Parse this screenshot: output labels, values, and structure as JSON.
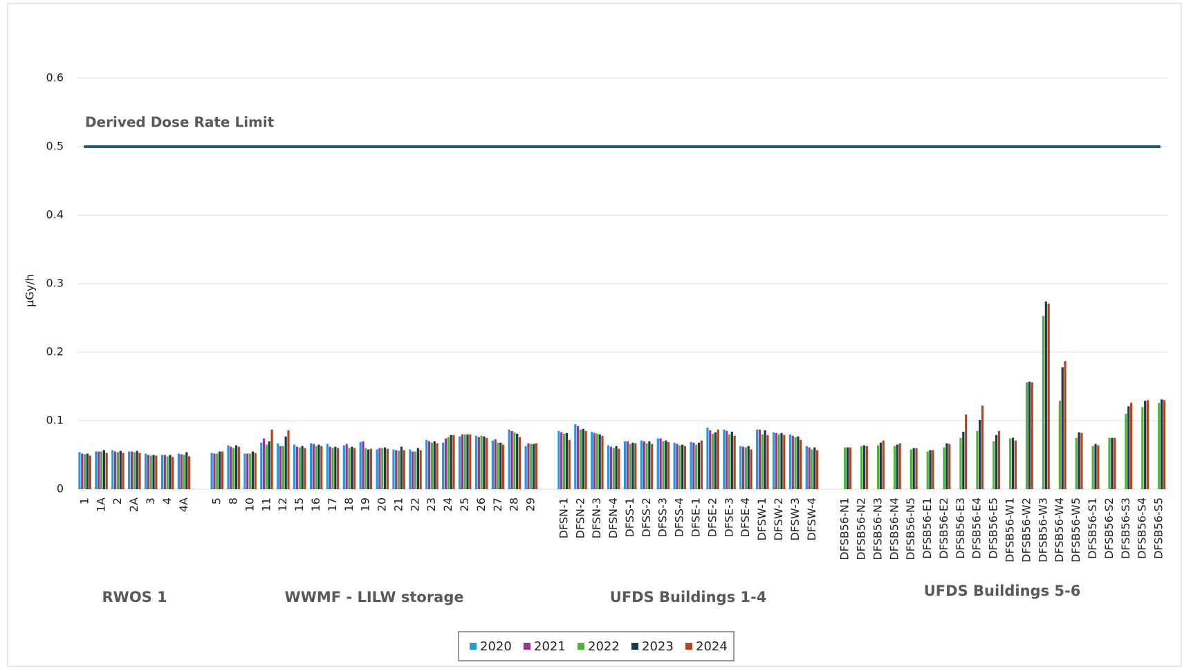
{
  "chart_data": {
    "type": "bar",
    "y_label": "µGy/h",
    "ylim": [
      0,
      0.6
    ],
    "yticks": [
      0,
      0.1,
      0.2,
      0.3,
      0.4,
      0.5,
      0.6
    ],
    "grid": true,
    "legend": "bottom",
    "reference_line": {
      "label": "Derived Dose Rate Limit",
      "value": 0.5,
      "color": "#1b5a7e"
    },
    "group_labels": [
      "RWOS 1",
      "WWMF - LILW storage",
      "UFDS Buildings 1-4",
      "UFDS Buildings 5-6"
    ],
    "categories": [
      "1",
      "1A",
      "2",
      "2A",
      "3",
      "4",
      "4A",
      null,
      "5",
      "8",
      "10",
      "11",
      "12",
      "15",
      "16",
      "17",
      "18",
      "19",
      "20",
      "21",
      "22",
      "23",
      "24",
      "25",
      "26",
      "27",
      "28",
      "29",
      null,
      "DFSN-1",
      "DFSN-2",
      "DFSN-3",
      "DFSN-4",
      "DFSS-1",
      "DFSS-2",
      "DFSS-3",
      "DFSS-4",
      "DFSE-1",
      "DFSE-2",
      "DFSE-3",
      "DFSE-4",
      "DFSW-1",
      "DFSW-2",
      "DFSW-3",
      "DFSW-4",
      null,
      "DFSB56-N1",
      "DFSB56-N2",
      "DFSB56-N3",
      "DFSB56-N4",
      "DFSB56-N5",
      "DFSB56-E1",
      "DFSB56-E2",
      "DFSB56-E3",
      "DFSB56-E4",
      "DFSB56-E5",
      "DFSB56-W1",
      "DFSB56-W2",
      "DFSB56-W3",
      "DFSB56-W4",
      "DFSB56-W5",
      "DFSB56-S1",
      "DFSB56-S2",
      "DFSB56-S3",
      "DFSB56-S4",
      "DFSB56-S5"
    ],
    "series": [
      {
        "name": "2020",
        "color": "#1f9bd7",
        "values": [
          0.054,
          0.055,
          0.057,
          0.055,
          0.052,
          0.05,
          0.052,
          null,
          0.053,
          0.064,
          0.052,
          0.068,
          0.067,
          0.065,
          0.067,
          0.066,
          0.064,
          0.069,
          0.058,
          0.058,
          0.058,
          0.072,
          0.068,
          0.077,
          0.078,
          0.071,
          0.087,
          0.063,
          null,
          0.085,
          0.095,
          0.084,
          0.064,
          0.07,
          0.071,
          0.074,
          0.068,
          0.069,
          0.09,
          0.087,
          0.063,
          0.087,
          0.083,
          0.08,
          0.063,
          null,
          null,
          null,
          null,
          null,
          null,
          null,
          null,
          null,
          null,
          null,
          null,
          null,
          null,
          null,
          null,
          null,
          null,
          null,
          null,
          null
        ]
      },
      {
        "name": "2021",
        "color": "#a0309a",
        "values": [
          0.052,
          0.055,
          0.055,
          0.055,
          0.05,
          0.05,
          0.051,
          null,
          0.052,
          0.062,
          0.052,
          0.074,
          0.063,
          0.062,
          0.066,
          0.062,
          0.066,
          0.07,
          0.06,
          0.057,
          0.055,
          0.07,
          0.074,
          0.08,
          0.076,
          0.073,
          0.085,
          0.067,
          null,
          0.083,
          0.092,
          0.082,
          0.062,
          0.07,
          0.07,
          0.074,
          0.066,
          0.068,
          0.086,
          0.085,
          0.062,
          0.087,
          0.082,
          0.078,
          0.061,
          null,
          null,
          null,
          null,
          null,
          null,
          null,
          null,
          null,
          null,
          null,
          null,
          null,
          null,
          null,
          null,
          null,
          null,
          null,
          null,
          null
        ]
      },
      {
        "name": "2022",
        "color": "#4fb33a",
        "values": [
          0.051,
          0.055,
          0.054,
          0.054,
          0.049,
          0.048,
          0.05,
          null,
          0.052,
          0.06,
          0.052,
          0.065,
          0.063,
          0.061,
          0.063,
          0.06,
          0.06,
          0.06,
          0.06,
          0.056,
          0.055,
          0.068,
          0.076,
          0.08,
          0.078,
          0.068,
          0.083,
          0.066,
          null,
          0.081,
          0.087,
          0.081,
          0.06,
          0.066,
          0.067,
          0.07,
          0.064,
          0.065,
          0.081,
          0.08,
          0.061,
          0.08,
          0.08,
          0.076,
          0.058,
          null,
          0.061,
          0.063,
          0.064,
          0.063,
          0.058,
          0.055,
          0.061,
          0.075,
          0.085,
          0.07,
          0.074,
          0.156,
          0.253,
          0.129,
          0.075,
          0.063,
          0.075,
          0.11,
          0.12,
          0.126
        ]
      },
      {
        "name": "2023",
        "color": "#1a3a52",
        "values": [
          0.052,
          0.057,
          0.056,
          0.056,
          0.05,
          0.05,
          0.054,
          null,
          0.055,
          0.064,
          0.055,
          0.07,
          0.077,
          0.063,
          0.065,
          0.062,
          0.062,
          0.058,
          0.061,
          0.062,
          0.06,
          0.07,
          0.079,
          0.08,
          0.077,
          0.068,
          0.081,
          0.066,
          null,
          0.082,
          0.088,
          0.08,
          0.063,
          0.068,
          0.07,
          0.071,
          0.065,
          0.068,
          0.083,
          0.084,
          0.063,
          0.086,
          0.082,
          0.077,
          0.061,
          null,
          0.061,
          0.064,
          0.068,
          0.065,
          0.06,
          0.057,
          0.067,
          0.084,
          0.101,
          0.079,
          0.075,
          0.157,
          0.274,
          0.178,
          0.083,
          0.066,
          0.075,
          0.121,
          0.129,
          0.131
        ]
      },
      {
        "name": "2024",
        "color": "#b5451b",
        "values": [
          0.049,
          0.053,
          0.053,
          0.053,
          0.049,
          0.047,
          0.048,
          null,
          0.055,
          0.062,
          0.053,
          0.087,
          0.086,
          0.06,
          0.063,
          0.06,
          0.06,
          0.059,
          0.059,
          0.057,
          0.057,
          0.067,
          0.079,
          0.08,
          0.075,
          0.065,
          0.076,
          0.067,
          null,
          0.072,
          0.085,
          0.078,
          0.059,
          0.067,
          0.066,
          0.069,
          0.063,
          0.071,
          0.087,
          0.078,
          0.058,
          0.079,
          0.079,
          0.072,
          0.057,
          null,
          0.061,
          0.063,
          0.071,
          0.067,
          0.06,
          0.057,
          0.066,
          0.109,
          0.122,
          0.085,
          0.071,
          0.156,
          0.271,
          0.187,
          0.082,
          0.064,
          0.075,
          0.126,
          0.13,
          0.13
        ]
      }
    ]
  }
}
